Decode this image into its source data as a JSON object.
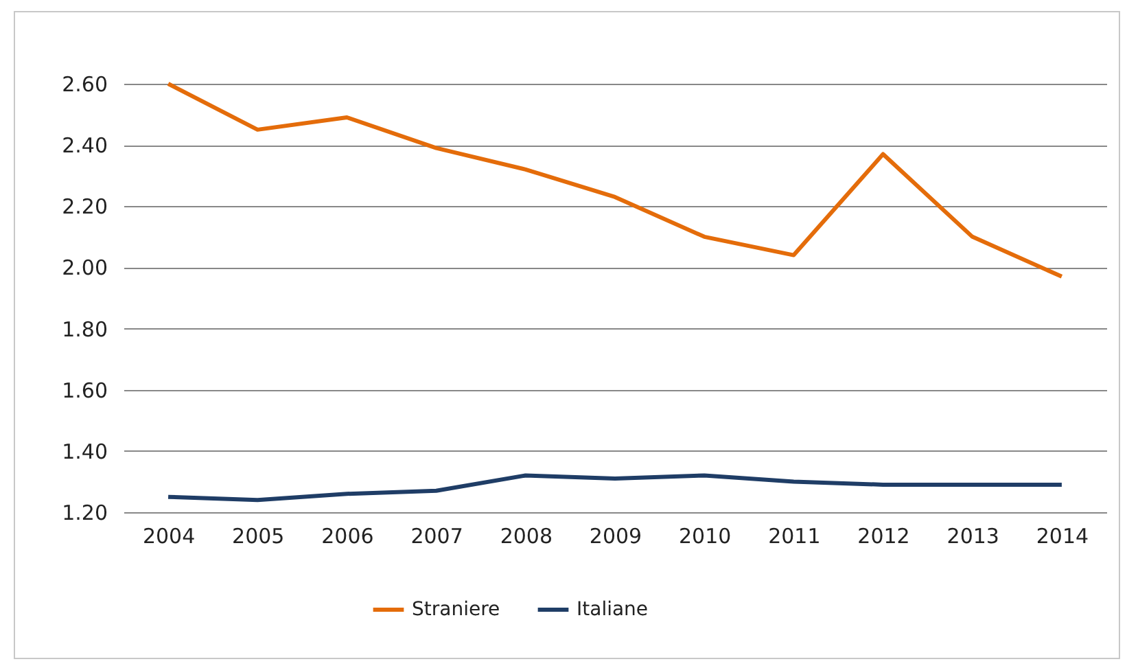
{
  "chart_data": {
    "type": "line",
    "categories": [
      "2004",
      "2005",
      "2006",
      "2007",
      "2008",
      "2009",
      "2010",
      "2011",
      "2012",
      "2013",
      "2014"
    ],
    "series": [
      {
        "name": "Straniere",
        "color": "#e46c0a",
        "values": [
          2.6,
          2.45,
          2.49,
          2.39,
          2.32,
          2.23,
          2.1,
          2.04,
          2.37,
          2.1,
          1.97
        ]
      },
      {
        "name": "Italiane",
        "color": "#1f3d66",
        "values": [
          1.25,
          1.24,
          1.26,
          1.27,
          1.32,
          1.31,
          1.32,
          1.3,
          1.29,
          1.29,
          1.29
        ]
      }
    ],
    "ylim": [
      1.2,
      2.6
    ],
    "yticks": [
      {
        "value": 1.2,
        "label": "1.20"
      },
      {
        "value": 1.4,
        "label": "1.40"
      },
      {
        "value": 1.6,
        "label": "1.60"
      },
      {
        "value": 1.8,
        "label": "1.80"
      },
      {
        "value": 2.0,
        "label": "2.00"
      },
      {
        "value": 2.2,
        "label": "2.20"
      },
      {
        "value": 2.4,
        "label": "2.40"
      },
      {
        "value": 2.6,
        "label": "2.60"
      }
    ],
    "grid": "y",
    "legend": "bottom",
    "marker": "none",
    "line_style": "solid"
  }
}
